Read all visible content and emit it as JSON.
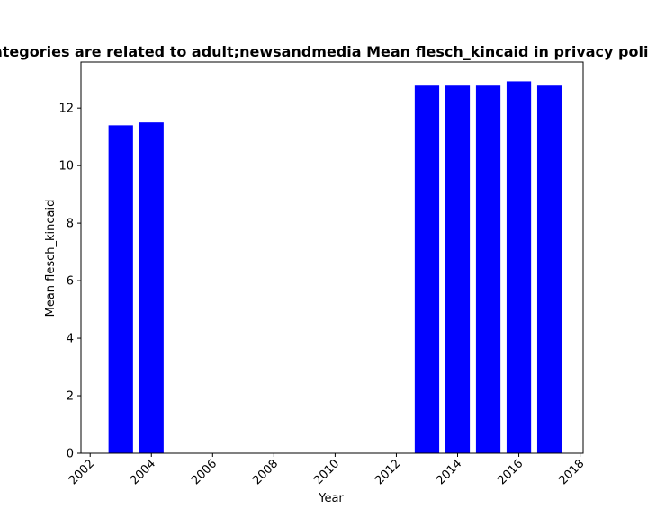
{
  "chart_data": {
    "type": "bar",
    "title": "Categories are related to adult;newsandmedia Mean flesch_kincaid in privacy policies",
    "xlabel": "Year",
    "ylabel": "Mean flesch_kincaid",
    "x": [
      2003,
      2004,
      2013,
      2014,
      2015,
      2016,
      2017
    ],
    "values": [
      11.4,
      11.5,
      12.78,
      12.78,
      12.78,
      12.93,
      12.78
    ],
    "xlim": [
      2001.7,
      2018.1
    ],
    "ylim": [
      0,
      13.6
    ],
    "xticks": [
      2002,
      2004,
      2006,
      2008,
      2010,
      2012,
      2014,
      2016,
      2018
    ],
    "yticks": [
      0,
      2,
      4,
      6,
      8,
      10,
      12
    ],
    "bar_color": "#0000ff",
    "grid": false,
    "legend": "none"
  }
}
